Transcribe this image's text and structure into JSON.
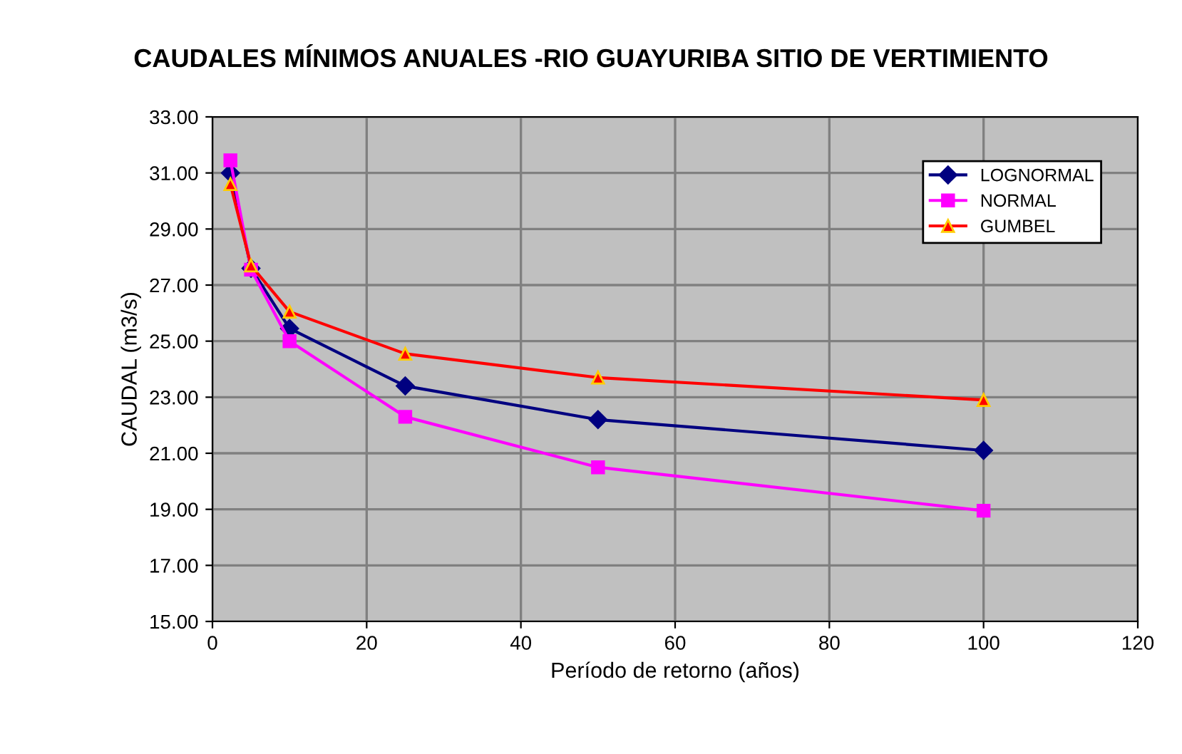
{
  "chart_data": {
    "type": "line",
    "title": "CAUDALES MÍNIMOS ANUALES -RIO GUAYURIBA SITIO DE VERTIMIENTO",
    "xlabel": "Período de retorno (años)",
    "ylabel": "CAUDAL (m3/s)",
    "x": [
      2.33,
      5,
      10,
      25,
      50,
      100
    ],
    "series": [
      {
        "name": "LOGNORMAL",
        "color": "#000080",
        "marker": "diamond",
        "values": [
          31.0,
          27.6,
          25.45,
          23.4,
          22.2,
          21.1
        ]
      },
      {
        "name": "NORMAL",
        "color": "#ff00ff",
        "marker": "square",
        "values": [
          31.45,
          27.55,
          25.0,
          22.3,
          20.5,
          18.95
        ]
      },
      {
        "name": "GUMBEL",
        "color": "#ff0000",
        "marker": "triangle",
        "values": [
          30.6,
          27.7,
          26.05,
          24.55,
          23.7,
          22.9
        ]
      }
    ],
    "xlim": [
      0,
      120
    ],
    "xticks": [
      0,
      20,
      40,
      60,
      80,
      100,
      120
    ],
    "ylim": [
      15,
      33
    ],
    "yticks": [
      {
        "value": 15,
        "label": "15.00"
      },
      {
        "value": 17,
        "label": "17.00"
      },
      {
        "value": 19,
        "label": "19.00"
      },
      {
        "value": 21,
        "label": "21.00"
      },
      {
        "value": 23,
        "label": "23.00"
      },
      {
        "value": 25,
        "label": "25.00"
      },
      {
        "value": 27,
        "label": "27.00"
      },
      {
        "value": 29,
        "label": "29.00"
      },
      {
        "value": 31,
        "label": "31.00"
      },
      {
        "value": 33,
        "label": "33.00"
      }
    ],
    "grid": true,
    "legend": "top right",
    "line_style": "solid"
  }
}
